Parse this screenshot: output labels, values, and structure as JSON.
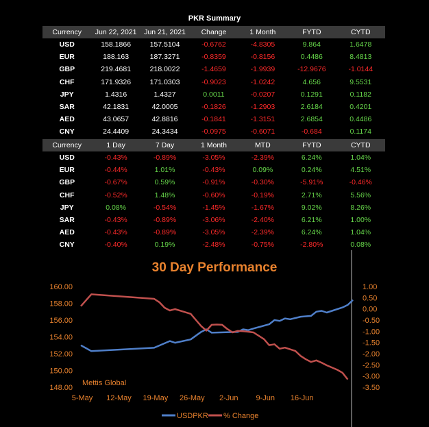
{
  "summary_title": "PKR Summary",
  "table1": {
    "headers": [
      "Currency",
      "Jun 22, 2021",
      "Jun 21, 2021",
      "Change",
      "1 Month",
      "FYTD",
      "CYTD"
    ],
    "rows": [
      [
        "USD",
        "158.1866",
        "157.5104",
        "-0.6762",
        "-4.8305",
        "9.864",
        "1.6478"
      ],
      [
        "EUR",
        "188.163",
        "187.3271",
        "-0.8359",
        "-0.8156",
        "0.4486",
        "8.4813"
      ],
      [
        "GBP",
        "219.4681",
        "218.0022",
        "-1.4659",
        "-1.9939",
        "-12.9676",
        "-1.0144"
      ],
      [
        "CHF",
        "171.9326",
        "171.0303",
        "-0.9023",
        "-1.0242",
        "4.656",
        "9.5531"
      ],
      [
        "JPY",
        "1.4316",
        "1.4327",
        "0.0011",
        "-0.0207",
        "0.1291",
        "0.1182"
      ],
      [
        "SAR",
        "42.1831",
        "42.0005",
        "-0.1826",
        "-1.2903",
        "2.6184",
        "0.4201"
      ],
      [
        "AED",
        "43.0657",
        "42.8816",
        "-0.1841",
        "-1.3151",
        "2.6854",
        "0.4486"
      ],
      [
        "CNY",
        "24.4409",
        "24.3434",
        "-0.0975",
        "-0.6071",
        "-0.684",
        "0.1174"
      ]
    ],
    "colors": [
      [
        "w",
        "w",
        "w",
        "r",
        "r",
        "g",
        "g"
      ],
      [
        "w",
        "w",
        "w",
        "r",
        "r",
        "g",
        "g"
      ],
      [
        "w",
        "w",
        "w",
        "r",
        "r",
        "r",
        "r"
      ],
      [
        "w",
        "w",
        "w",
        "r",
        "r",
        "g",
        "g"
      ],
      [
        "w",
        "w",
        "w",
        "g",
        "r",
        "g",
        "g"
      ],
      [
        "w",
        "w",
        "w",
        "r",
        "r",
        "g",
        "g"
      ],
      [
        "w",
        "w",
        "w",
        "r",
        "r",
        "g",
        "g"
      ],
      [
        "w",
        "w",
        "w",
        "r",
        "r",
        "r",
        "g"
      ]
    ]
  },
  "table2": {
    "headers": [
      "Currency",
      "1 Day",
      "7 Day",
      "1 Month",
      "MTD",
      "FYTD",
      "CYTD"
    ],
    "rows": [
      [
        "USD",
        "-0.43%",
        "-0.89%",
        "-3.05%",
        "-2.39%",
        "6.24%",
        "1.04%"
      ],
      [
        "EUR",
        "-0.44%",
        "1.01%",
        "-0.43%",
        "0.09%",
        "0.24%",
        "4.51%"
      ],
      [
        "GBP",
        "-0.67%",
        "0.59%",
        "-0.91%",
        "-0.30%",
        "-5.91%",
        "-0.46%"
      ],
      [
        "CHF",
        "-0.52%",
        "1.48%",
        "-0.60%",
        "-0.19%",
        "2.71%",
        "5.56%"
      ],
      [
        "JPY",
        "0.08%",
        "-0.54%",
        "-1.45%",
        "-1.67%",
        "9.02%",
        "8.26%"
      ],
      [
        "SAR",
        "-0.43%",
        "-0.89%",
        "-3.06%",
        "-2.40%",
        "6.21%",
        "1.00%"
      ],
      [
        "AED",
        "-0.43%",
        "-0.89%",
        "-3.05%",
        "-2.39%",
        "6.24%",
        "1.04%"
      ],
      [
        "CNY",
        "-0.40%",
        "0.19%",
        "-2.48%",
        "-0.75%",
        "-2.80%",
        "0.08%"
      ]
    ]
  },
  "chart_data": {
    "type": "line",
    "title": "30 Day Performance",
    "watermark": "Mettis Global",
    "x_labels": [
      "5-May",
      "12-May",
      "19-May",
      "26-May",
      "2-Jun",
      "9-Jun",
      "16-Jun"
    ],
    "y_left": {
      "min": 148,
      "max": 160,
      "ticks": [
        "148.00",
        "150.00",
        "152.00",
        "154.00",
        "156.00",
        "158.00",
        "160.00"
      ]
    },
    "y_right": {
      "min": -3.5,
      "max": 1,
      "ticks": [
        "1.00",
        "0.50",
        "0.00",
        "-0.50",
        "-1.00",
        "-1.50",
        "-2.00",
        "-2.50",
        "-3.00",
        "-3.50"
      ]
    },
    "legend": [
      "USDPKR",
      "% Change"
    ],
    "series": [
      {
        "name": "USDPKR",
        "color": "#4f7fc9",
        "axis": "left",
        "points": [
          [
            0,
            153.0
          ],
          [
            2,
            152.3
          ],
          [
            14,
            152.7
          ],
          [
            17,
            153.5
          ],
          [
            18,
            153.3
          ],
          [
            21,
            153.7
          ],
          [
            23,
            154.6
          ],
          [
            24,
            154.9
          ],
          [
            25,
            154.5
          ],
          [
            30,
            154.6
          ],
          [
            31,
            154.9
          ],
          [
            32,
            154.8
          ],
          [
            33,
            155.0
          ],
          [
            36,
            155.5
          ],
          [
            37,
            156.0
          ],
          [
            38,
            155.9
          ],
          [
            39,
            156.2
          ],
          [
            40,
            156.1
          ],
          [
            42,
            156.4
          ],
          [
            44,
            156.5
          ],
          [
            45,
            157.0
          ],
          [
            46,
            157.1
          ],
          [
            47,
            156.9
          ],
          [
            48,
            157.1
          ],
          [
            50,
            157.5
          ],
          [
            51,
            157.8
          ],
          [
            52,
            158.4
          ]
        ]
      },
      {
        "name": "% Change",
        "color": "#c0504d",
        "axis": "right",
        "points": [
          [
            0,
            0.12
          ],
          [
            2,
            0.65
          ],
          [
            14,
            0.45
          ],
          [
            15,
            0.3
          ],
          [
            16,
            0.05
          ],
          [
            17,
            -0.07
          ],
          [
            18,
            -0.01
          ],
          [
            19,
            -0.08
          ],
          [
            21,
            -0.22
          ],
          [
            22,
            -0.5
          ],
          [
            23,
            -0.77
          ],
          [
            24,
            -0.97
          ],
          [
            25,
            -0.71
          ],
          [
            26,
            -0.7
          ],
          [
            27,
            -0.71
          ],
          [
            28,
            -0.9
          ],
          [
            29,
            -1.05
          ],
          [
            30,
            -0.98
          ],
          [
            31,
            -1.0
          ],
          [
            32,
            -1.02
          ],
          [
            33,
            -1.05
          ],
          [
            35,
            -1.35
          ],
          [
            36,
            -1.62
          ],
          [
            37,
            -1.58
          ],
          [
            38,
            -1.78
          ],
          [
            39,
            -1.73
          ],
          [
            41,
            -1.88
          ],
          [
            42,
            -2.1
          ],
          [
            43,
            -2.25
          ],
          [
            44,
            -2.37
          ],
          [
            45,
            -2.3
          ],
          [
            46,
            -2.4
          ],
          [
            47,
            -2.52
          ],
          [
            49,
            -2.72
          ],
          [
            50,
            -2.85
          ],
          [
            51,
            -3.15
          ]
        ]
      }
    ]
  }
}
